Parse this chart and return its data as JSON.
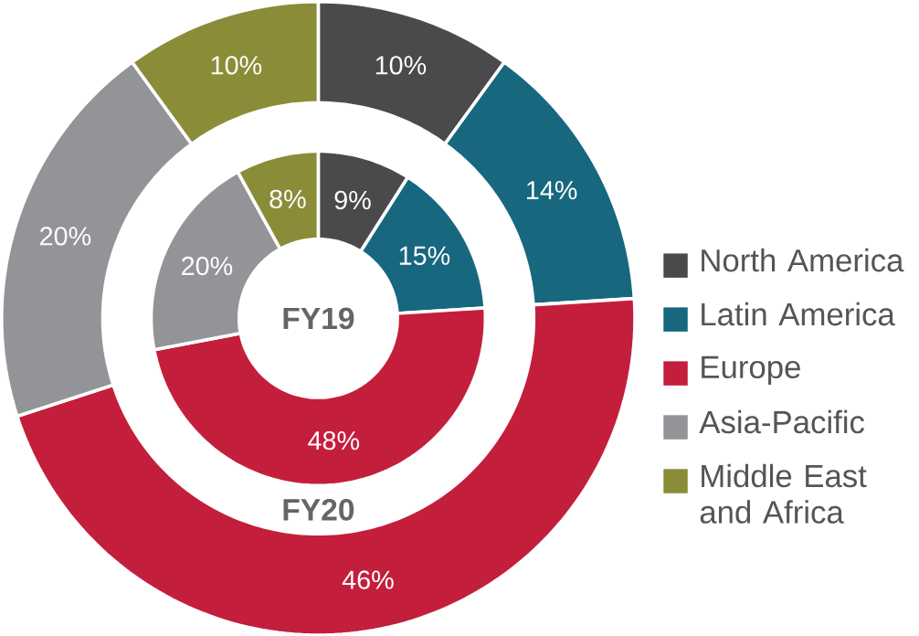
{
  "chart_data": {
    "type": "donut",
    "categories": [
      "North America",
      "Latin America",
      "Europe",
      "Asia-Pacific",
      "Middle East and Africa"
    ],
    "colors": [
      "#4a494b",
      "#17677f",
      "#c41e3d",
      "#939497",
      "#8b8c38"
    ],
    "series": [
      {
        "name": "FY20",
        "values": [
          10,
          14,
          46,
          20,
          10
        ],
        "value_labels": [
          "10%",
          "14%",
          "46%",
          "20%",
          "10%"
        ]
      },
      {
        "name": "FY19",
        "values": [
          9,
          15,
          48,
          20,
          8
        ],
        "value_labels": [
          "9%",
          "15%",
          "48%",
          "20%",
          "8%"
        ]
      }
    ],
    "legend": "right"
  }
}
